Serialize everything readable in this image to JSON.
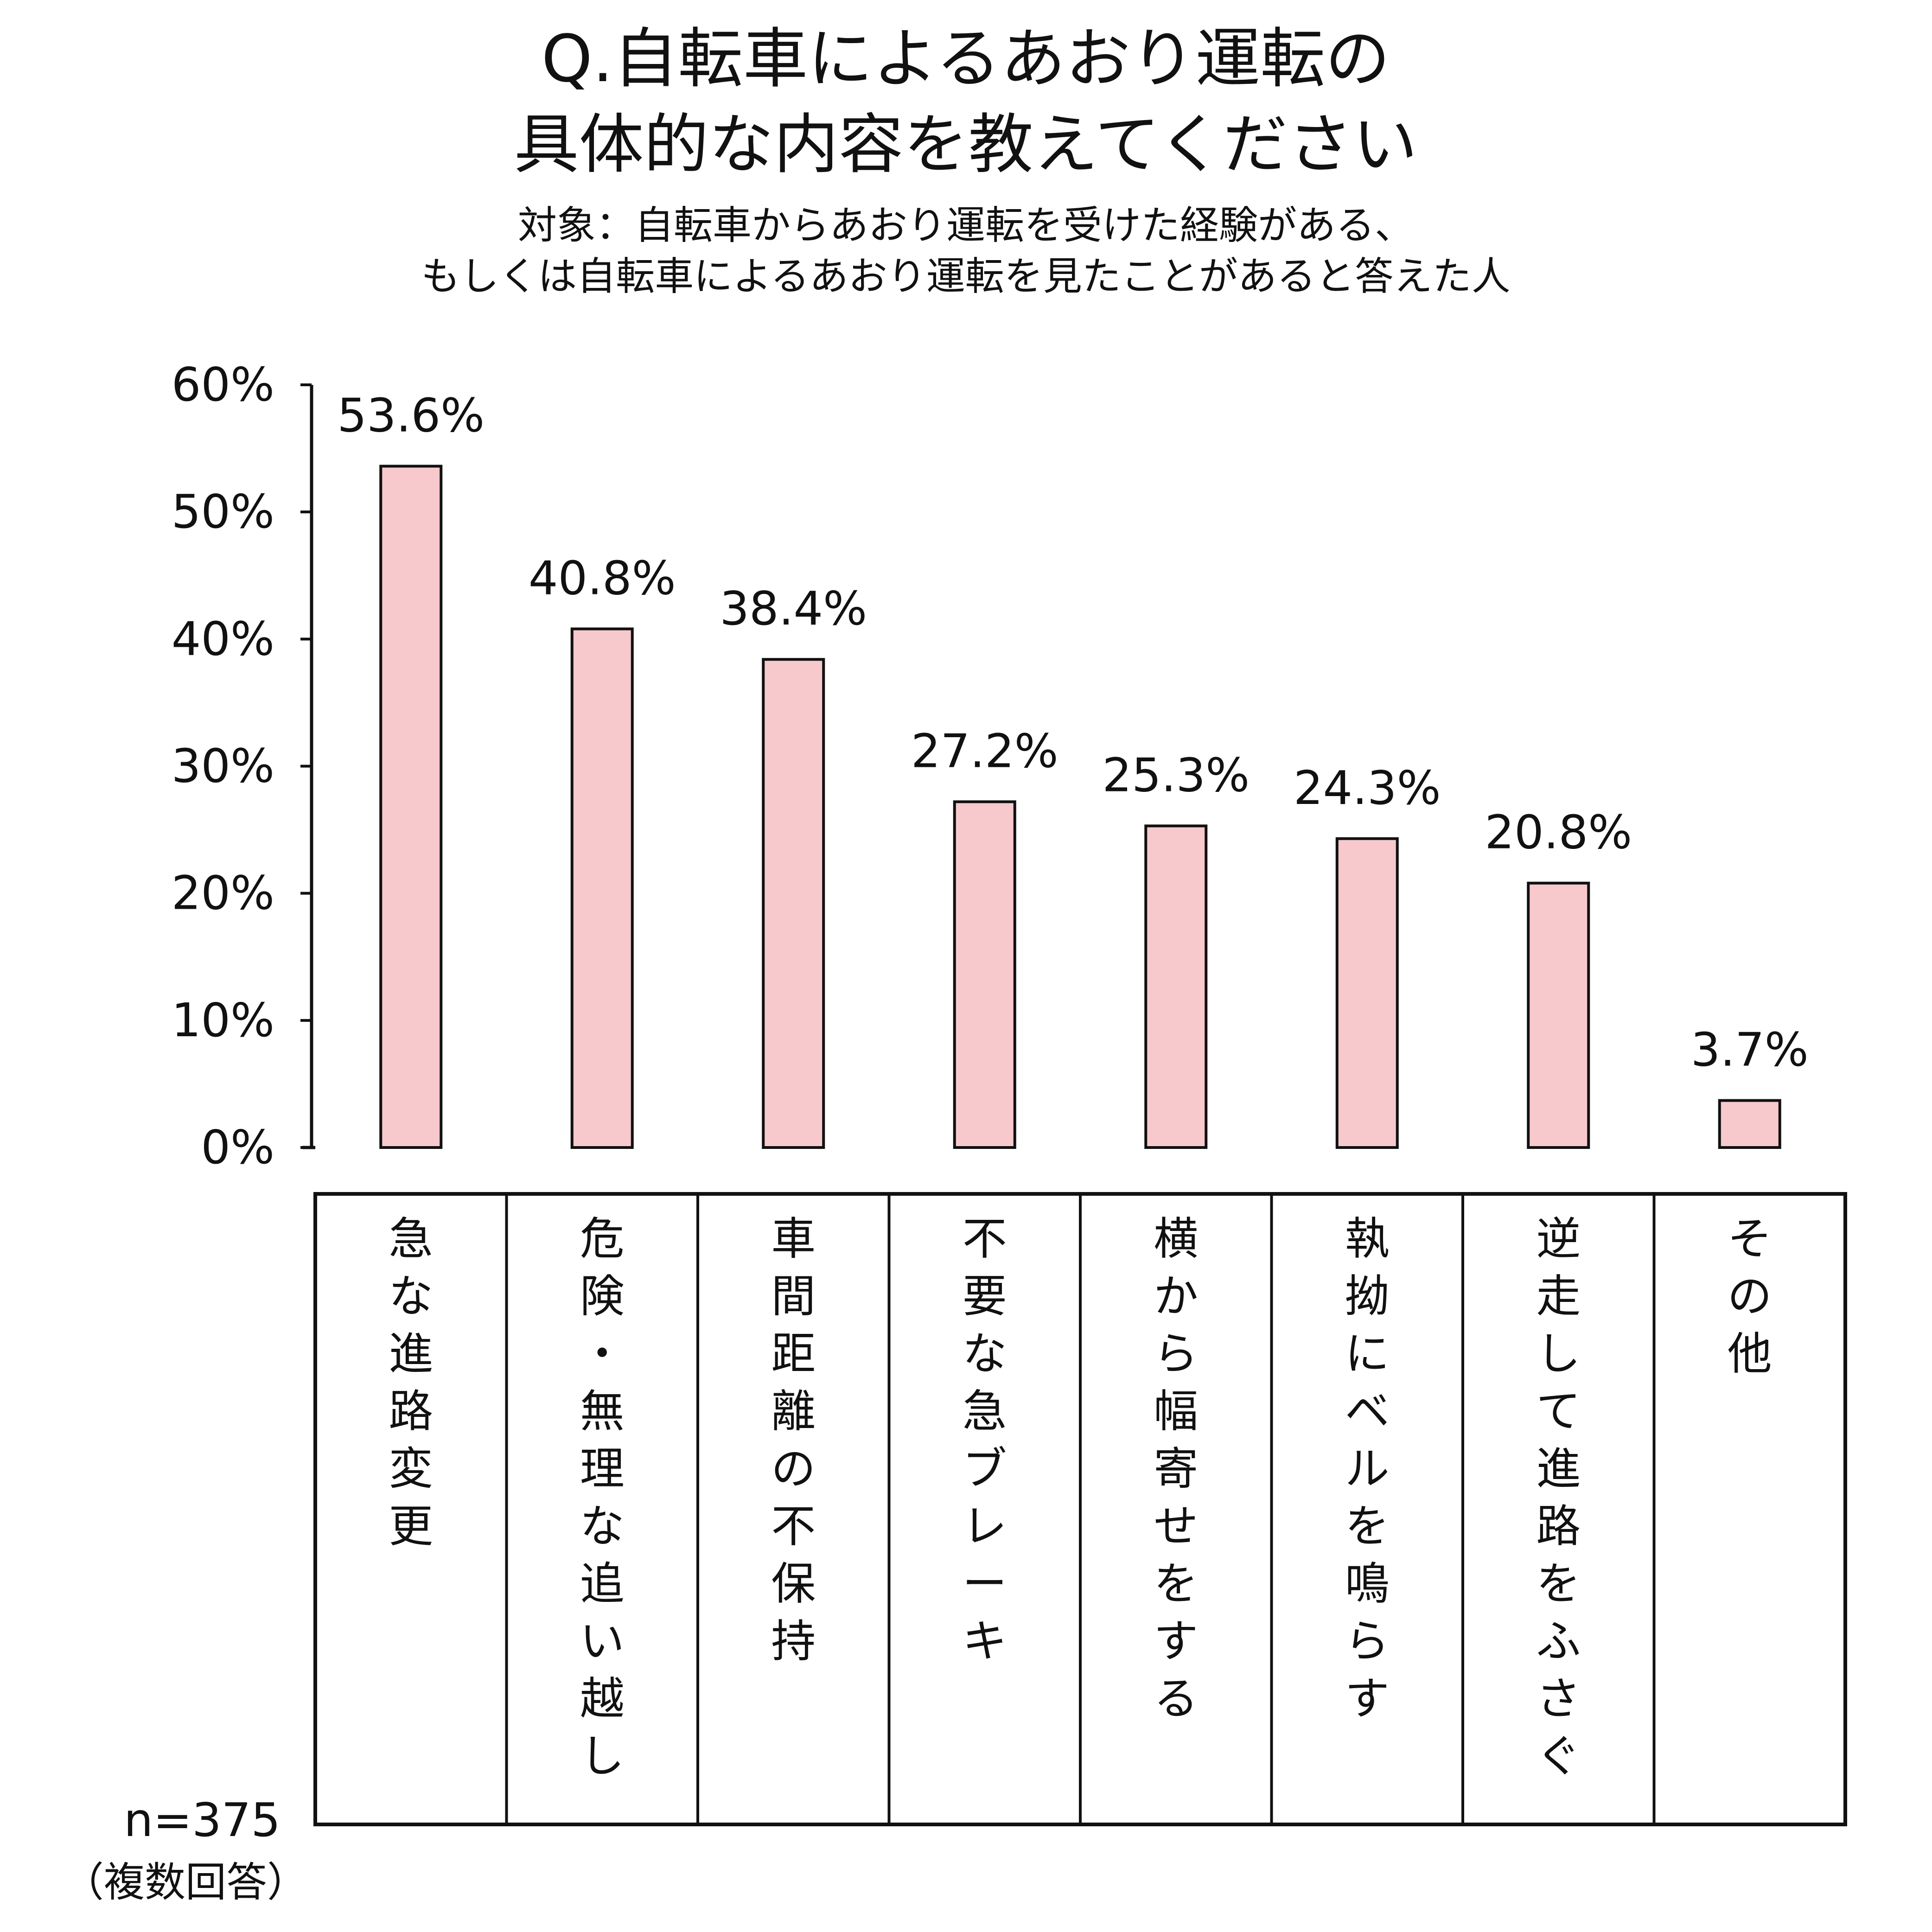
{
  "title": {
    "line1": "Q.自転車によるあおり運転の",
    "line2": "具体的な内容を教えてください"
  },
  "subtitle": {
    "line1": "対象：自転車からあおり運転を受けた経験がある、",
    "line2": "もしくは自転車によるあおり運転を見たことがあると答えた人"
  },
  "footnote": {
    "n": "n=375",
    "note": "（複数回答）"
  },
  "colors": {
    "bar_fill": "#F7C9CC",
    "bar_stroke": "#111111",
    "axis": "#111111"
  },
  "chart_data": {
    "type": "bar",
    "title": "Q.自転車によるあおり運転の具体的な内容を教えてください",
    "categories": [
      "急な進路変更",
      "危険・無理な追い越し",
      "車間距離の不保持",
      "不要な急ブレーキ",
      "横から幅寄せをする",
      "執拗にベルを鳴らす",
      "逆走して進路をふさぐ",
      "その他"
    ],
    "values": [
      53.6,
      40.8,
      38.4,
      27.2,
      25.3,
      24.3,
      20.8,
      3.7
    ],
    "value_labels": [
      "53.6%",
      "40.8%",
      "38.4%",
      "27.2%",
      "25.3%",
      "24.3%",
      "20.8%",
      "3.7%"
    ],
    "ylim": [
      0,
      60
    ],
    "yticks": [
      0,
      10,
      20,
      30,
      40,
      50,
      60
    ],
    "ytick_labels": [
      "0%",
      "10%",
      "20%",
      "30%",
      "40%",
      "50%",
      "60%"
    ],
    "xlabel": "",
    "ylabel": "",
    "grid": false,
    "legend": "none"
  }
}
